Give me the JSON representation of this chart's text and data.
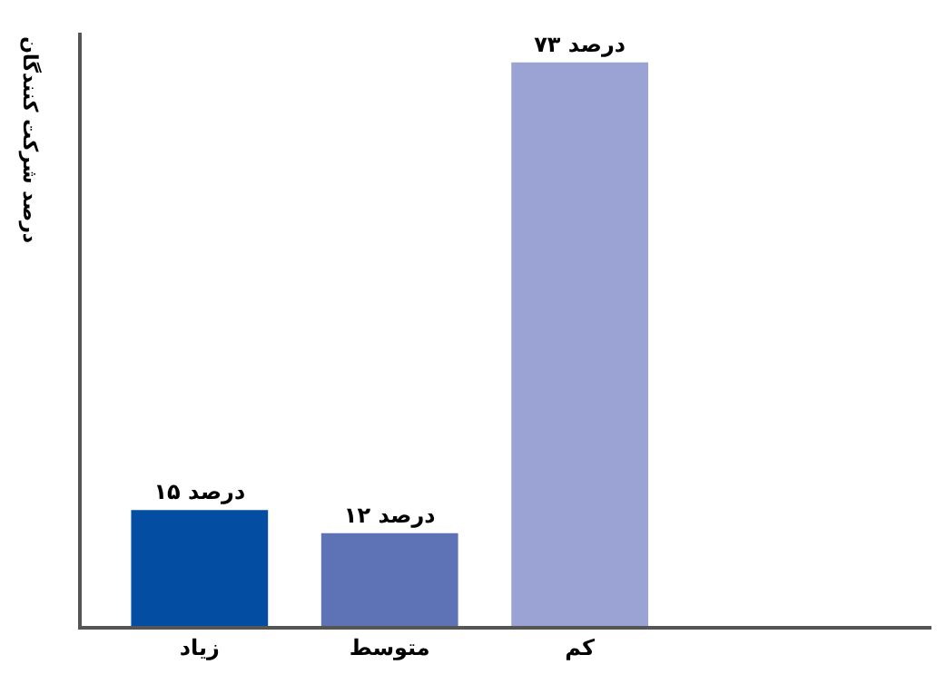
{
  "chart_data": {
    "type": "bar",
    "ylabel": "درصد شرکت کنندگان",
    "categories": [
      "زیاد",
      "متوسط",
      "کم"
    ],
    "values": [
      15,
      12,
      73
    ],
    "colors": [
      "#034ea2",
      "#5e72b6",
      "#9aa3d4"
    ],
    "value_labels": [
      "۱۵ درصد",
      "۱۲ درصد",
      "۷۳ درصد"
    ],
    "tick_labels": "x"
  }
}
